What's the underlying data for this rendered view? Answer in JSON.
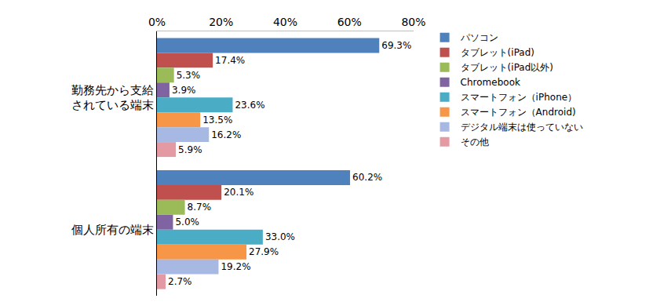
{
  "chart_data": {
    "type": "bar",
    "orientation": "horizontal",
    "categories": [
      "勤務先から支給\nされている端末",
      "個人所有の端末"
    ],
    "series": [
      {
        "name": "パソコン",
        "color": "#4F81BD",
        "values": [
          69.3,
          60.2
        ],
        "value_labels": [
          "69.3%",
          "60.2%"
        ]
      },
      {
        "name": "タブレット(iPad)",
        "color": "#C0504D",
        "values": [
          17.4,
          20.1
        ],
        "value_labels": [
          "17.4%",
          "20.1%"
        ]
      },
      {
        "name": "タブレット(iPad以外)",
        "color": "#9BBB59",
        "values": [
          5.3,
          8.7
        ],
        "value_labels": [
          "5.3%",
          "8.7%"
        ]
      },
      {
        "name": "Chromebook",
        "color": "#8064A2",
        "values": [
          3.9,
          5.0
        ],
        "value_labels": [
          "3.9%",
          "5.0%"
        ]
      },
      {
        "name": "スマートフォン（iPhone）",
        "color": "#4BACC6",
        "values": [
          23.6,
          33.0
        ],
        "value_labels": [
          "23.6%",
          "33.0%"
        ]
      },
      {
        "name": "スマートフォン（Android)",
        "color": "#F79646",
        "values": [
          13.5,
          27.9
        ],
        "value_labels": [
          "13.5%",
          "27.9%"
        ]
      },
      {
        "name": "デジタル端末は使っていない",
        "color": "#A7B9E3",
        "values": [
          16.2,
          19.2
        ],
        "value_labels": [
          "16.2%",
          "19.2%"
        ]
      },
      {
        "name": "その他",
        "color": "#E39AA3",
        "values": [
          5.9,
          2.7
        ],
        "value_labels": [
          "5.9%",
          "2.7%"
        ]
      }
    ],
    "xlim": [
      0,
      80
    ],
    "xticks": [
      {
        "value": 0,
        "label": "0%"
      },
      {
        "value": 20,
        "label": "20%"
      },
      {
        "value": 40,
        "label": "40%"
      },
      {
        "value": 60,
        "label": "60%"
      },
      {
        "value": 80,
        "label": "80%"
      }
    ],
    "grid": false,
    "legend": "right",
    "data_labels": true
  }
}
